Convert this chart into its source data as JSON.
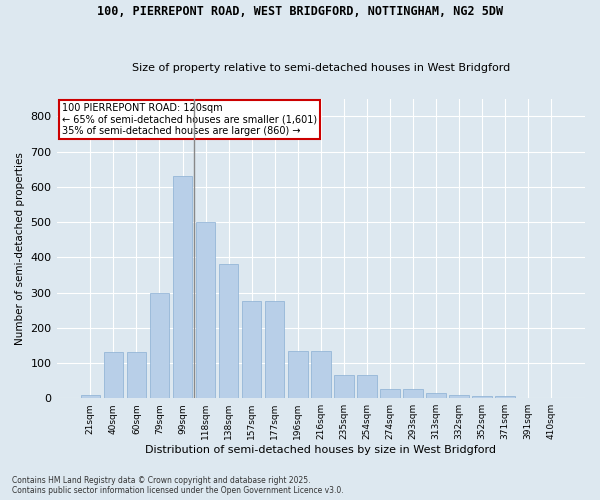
{
  "title1": "100, PIERREPONT ROAD, WEST BRIDGFORD, NOTTINGHAM, NG2 5DW",
  "title2": "Size of property relative to semi-detached houses in West Bridgford",
  "xlabel": "Distribution of semi-detached houses by size in West Bridgford",
  "ylabel": "Number of semi-detached properties",
  "categories": [
    "21sqm",
    "40sqm",
    "60sqm",
    "79sqm",
    "99sqm",
    "118sqm",
    "138sqm",
    "157sqm",
    "177sqm",
    "196sqm",
    "216sqm",
    "235sqm",
    "254sqm",
    "274sqm",
    "293sqm",
    "313sqm",
    "332sqm",
    "352sqm",
    "371sqm",
    "391sqm",
    "410sqm"
  ],
  "values": [
    10,
    130,
    130,
    300,
    630,
    500,
    380,
    275,
    275,
    135,
    135,
    65,
    65,
    25,
    25,
    15,
    10,
    5,
    5,
    0,
    0
  ],
  "bar_color": "#b8cfe8",
  "bar_edge_color": "#8aafd4",
  "annotation_text_line1": "100 PIERREPONT ROAD: 120sqm",
  "annotation_text_line2": "← 65% of semi-detached houses are smaller (1,601)",
  "annotation_text_line3": "35% of semi-detached houses are larger (860) →",
  "vline_color": "#888888",
  "box_edge_color": "#cc0000",
  "box_face_color": "#ffffff",
  "background_color": "#dde8f0",
  "plot_background": "#dde8f0",
  "grid_color": "#ffffff",
  "ylim": [
    0,
    850
  ],
  "yticks": [
    0,
    100,
    200,
    300,
    400,
    500,
    600,
    700,
    800
  ],
  "vline_index": 5,
  "footer_line1": "Contains HM Land Registry data © Crown copyright and database right 2025.",
  "footer_line2": "Contains public sector information licensed under the Open Government Licence v3.0."
}
